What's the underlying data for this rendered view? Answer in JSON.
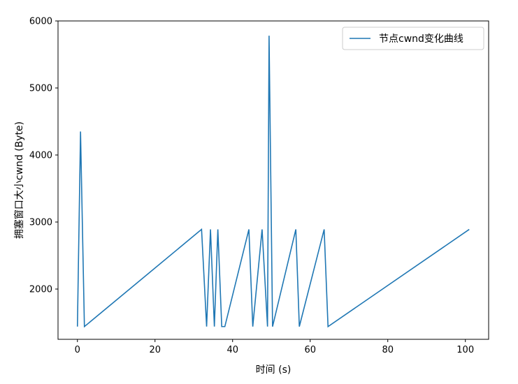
{
  "chart_data": {
    "type": "line",
    "xlabel": "时间 (s)",
    "ylabel": "拥塞窗口大小cwnd (Byte)",
    "xlim": [
      -5,
      106
    ],
    "ylim": [
      1250,
      6000
    ],
    "xticks": [
      0,
      20,
      40,
      60,
      80,
      100
    ],
    "yticks": [
      2000,
      3000,
      4000,
      5000,
      6000
    ],
    "grid": false,
    "legend_position": "top-right",
    "line_color": "#1f77b4",
    "series": [
      {
        "name": "节点cwnd变化曲线",
        "x": [
          0,
          0.8,
          1.8,
          32,
          33.3,
          34.3,
          35.3,
          36.2,
          37.2,
          38,
          44.2,
          45.2,
          47.6,
          49,
          49.4,
          50.3,
          56.3,
          57.2,
          63.6,
          64.6,
          101
        ],
        "y": [
          1440,
          4350,
          1440,
          2890,
          1440,
          2890,
          1440,
          2890,
          1440,
          1440,
          2890,
          1440,
          2890,
          1440,
          5780,
          1440,
          2890,
          1440,
          2890,
          1440,
          2890
        ]
      }
    ]
  }
}
